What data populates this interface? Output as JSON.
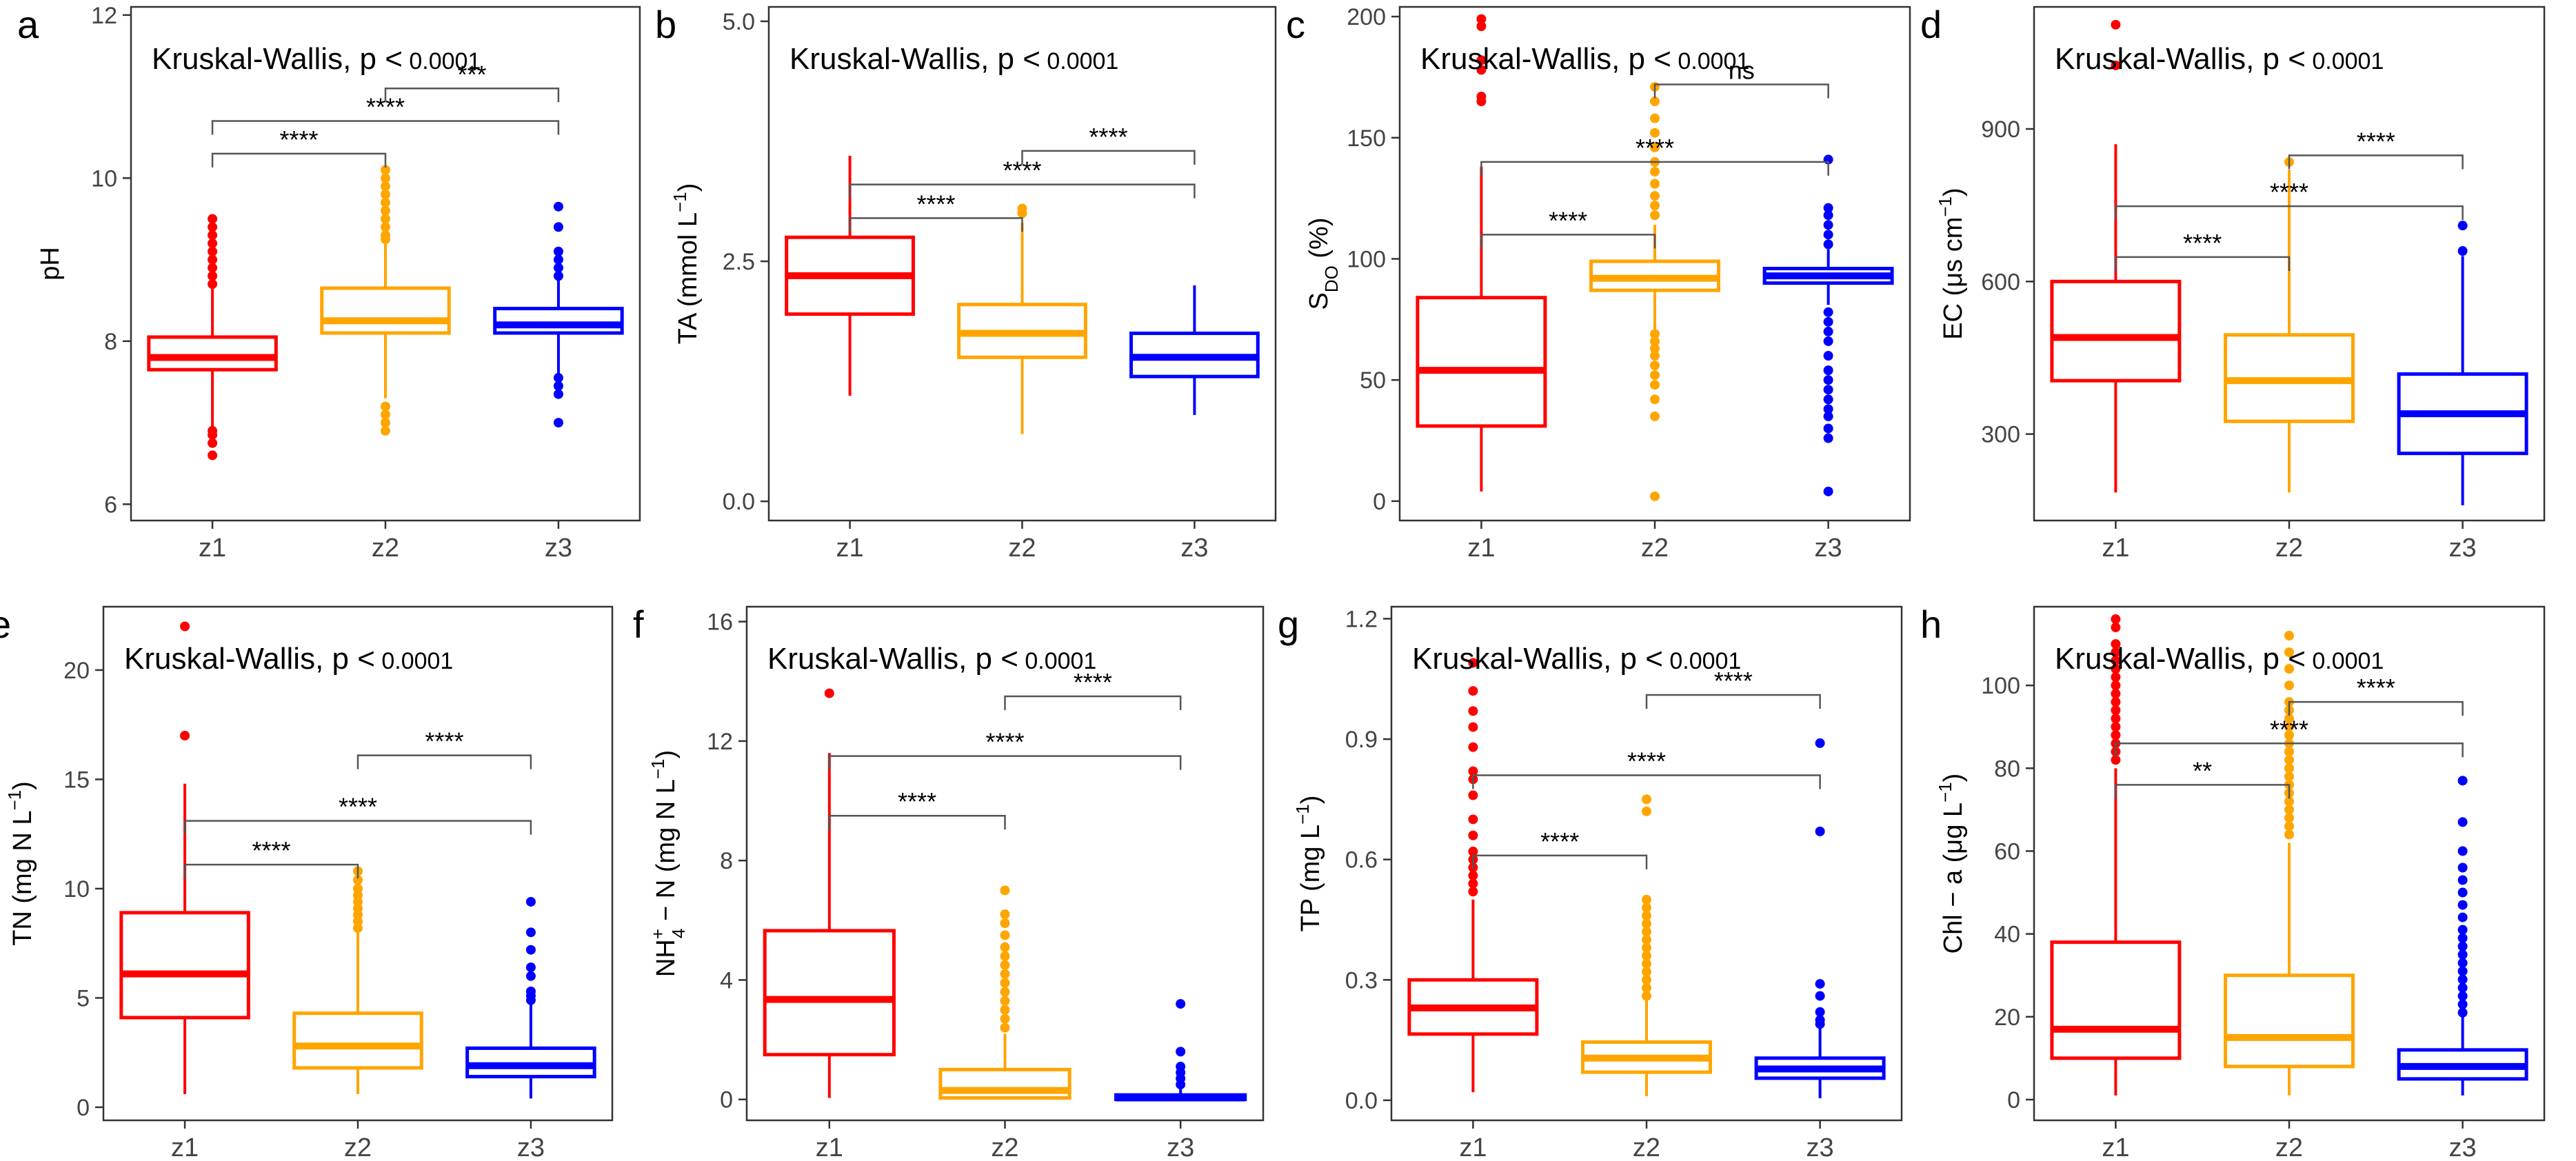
{
  "colors": {
    "z1": "#ff0000",
    "z2": "#ffa500",
    "z3": "#0000ff",
    "frame": "#333333",
    "bracket": "#555555"
  },
  "chart_data": [
    {
      "type": "box",
      "panel_label": "a",
      "title": "",
      "annotation": {
        "text": "Kruskal-Wallis, p <",
        "pvalue": "0.0001"
      },
      "xlabel": "",
      "ylabel": {
        "main": "pH"
      },
      "categories": [
        "z1",
        "z2",
        "z3"
      ],
      "ylim": [
        5.8,
        12.1
      ],
      "yticks": [
        {
          "v": 6,
          "label": "6"
        },
        {
          "v": 8,
          "label": "8"
        },
        {
          "v": 10,
          "label": "10"
        },
        {
          "v": 12,
          "label": "12"
        }
      ],
      "boxes": [
        {
          "group": "z1",
          "whislo": 6.95,
          "q1": 7.65,
          "med": 7.8,
          "q3": 8.05,
          "whishi": 8.65,
          "outliers": [
            6.6,
            6.75,
            6.85,
            6.9,
            8.7,
            8.8,
            8.9,
            9.0,
            9.1,
            9.2,
            9.3,
            9.4,
            9.5
          ]
        },
        {
          "group": "z2",
          "whislo": 7.3,
          "q1": 8.1,
          "med": 8.25,
          "q3": 8.65,
          "whishi": 9.2,
          "outliers": [
            6.9,
            7.0,
            7.1,
            7.2,
            9.25,
            9.3,
            9.4,
            9.5,
            9.6,
            9.7,
            9.8,
            9.9,
            10.0,
            10.1
          ]
        },
        {
          "group": "z3",
          "whislo": 7.6,
          "q1": 8.1,
          "med": 8.2,
          "q3": 8.4,
          "whishi": 8.75,
          "outliers": [
            7.0,
            7.35,
            7.45,
            7.55,
            8.8,
            8.9,
            9.0,
            9.1,
            9.4,
            9.65
          ]
        }
      ],
      "comparisons": [
        {
          "from": "z1",
          "to": "z2",
          "y": 10.3,
          "label": "****"
        },
        {
          "from": "z1",
          "to": "z3",
          "y": 10.7,
          "label": "****"
        },
        {
          "from": "z2",
          "to": "z3",
          "y": 11.1,
          "label": "***"
        }
      ]
    },
    {
      "type": "box",
      "panel_label": "b",
      "title": "",
      "annotation": {
        "text": "Kruskal-Wallis, p <",
        "pvalue": "0.0001"
      },
      "xlabel": "",
      "ylabel": {
        "main": "TA (mmol L",
        "sup": "−1",
        "end": ")"
      },
      "categories": [
        "z1",
        "z2",
        "z3"
      ],
      "ylim": [
        -0.2,
        5.15
      ],
      "yticks": [
        {
          "v": 0,
          "label": "0.0"
        },
        {
          "v": 2.5,
          "label": "2.5"
        },
        {
          "v": 5,
          "label": "5.0"
        }
      ],
      "boxes": [
        {
          "group": "z1",
          "whislo": 1.1,
          "q1": 1.95,
          "med": 2.35,
          "q3": 2.75,
          "whishi": 3.6,
          "outliers": []
        },
        {
          "group": "z2",
          "whislo": 0.7,
          "q1": 1.5,
          "med": 1.75,
          "q3": 2.05,
          "whishi": 2.9,
          "outliers": [
            3.0,
            3.05
          ]
        },
        {
          "group": "z3",
          "whislo": 0.9,
          "q1": 1.3,
          "med": 1.5,
          "q3": 1.75,
          "whishi": 2.25,
          "outliers": []
        }
      ],
      "comparisons": [
        {
          "from": "z1",
          "to": "z2",
          "y": 2.95,
          "label": "****"
        },
        {
          "from": "z1",
          "to": "z3",
          "y": 3.3,
          "label": "****"
        },
        {
          "from": "z2",
          "to": "z3",
          "y": 3.65,
          "label": "****"
        }
      ]
    },
    {
      "type": "box",
      "panel_label": "c",
      "title": "",
      "annotation": {
        "text": "Kruskal-Wallis, p <",
        "pvalue": "0.0001"
      },
      "xlabel": "",
      "ylabel": {
        "main": "S",
        "sub": "DO",
        "end": " (%)"
      },
      "categories": [
        "z1",
        "z2",
        "z3"
      ],
      "ylim": [
        -8,
        204
      ],
      "yticks": [
        {
          "v": 0,
          "label": "0"
        },
        {
          "v": 50,
          "label": "50"
        },
        {
          "v": 100,
          "label": "100"
        },
        {
          "v": 150,
          "label": "150"
        },
        {
          "v": 200,
          "label": "200"
        }
      ],
      "boxes": [
        {
          "group": "z1",
          "whislo": 4,
          "q1": 31,
          "med": 54,
          "q3": 84,
          "whishi": 138,
          "outliers": [
            165,
            167,
            178,
            182,
            196,
            199
          ]
        },
        {
          "group": "z2",
          "whislo": 71,
          "q1": 87,
          "med": 92,
          "q3": 99,
          "whishi": 114,
          "outliers": [
            2,
            35,
            42,
            48,
            52,
            56,
            60,
            63,
            66,
            69,
            118,
            122,
            126,
            131,
            136,
            140,
            146,
            152,
            158,
            165,
            171
          ]
        },
        {
          "group": "z3",
          "whislo": 81,
          "q1": 90,
          "med": 93,
          "q3": 96,
          "whishi": 104,
          "outliers": [
            4,
            26,
            30,
            35,
            38,
            42,
            46,
            50,
            54,
            60,
            66,
            70,
            74,
            78,
            106,
            110,
            114,
            118,
            121,
            141
          ]
        }
      ],
      "comparisons": [
        {
          "from": "z1",
          "to": "z2",
          "y": 110,
          "label": "****"
        },
        {
          "from": "z1",
          "to": "z3",
          "y": 140,
          "label": "****"
        },
        {
          "from": "z2",
          "to": "z3",
          "y": 172,
          "label": "ns"
        }
      ]
    },
    {
      "type": "box",
      "panel_label": "d",
      "title": "",
      "annotation": {
        "text": "Kruskal-Wallis, p <",
        "pvalue": "0.0001"
      },
      "xlabel": "",
      "ylabel": {
        "main": "EC (μs cm",
        "sup": "−1",
        "end": ")"
      },
      "categories": [
        "z1",
        "z2",
        "z3"
      ],
      "ylim": [
        130,
        1140
      ],
      "yticks": [
        {
          "v": 300,
          "label": "300"
        },
        {
          "v": 600,
          "label": "600"
        },
        {
          "v": 900,
          "label": "900"
        }
      ],
      "boxes": [
        {
          "group": "z1",
          "whislo": 185,
          "q1": 405,
          "med": 490,
          "q3": 600,
          "whishi": 870,
          "outliers": [
            1025,
            1105
          ]
        },
        {
          "group": "z2",
          "whislo": 185,
          "q1": 325,
          "med": 405,
          "q3": 495,
          "whishi": 820,
          "outliers": [
            835
          ]
        },
        {
          "group": "z3",
          "whislo": 160,
          "q1": 262,
          "med": 340,
          "q3": 418,
          "whishi": 650,
          "outliers": [
            660,
            710
          ]
        }
      ],
      "comparisons": [
        {
          "from": "z1",
          "to": "z2",
          "y": 648,
          "label": "****"
        },
        {
          "from": "z1",
          "to": "z3",
          "y": 748,
          "label": "****"
        },
        {
          "from": "z2",
          "to": "z3",
          "y": 848,
          "label": "****"
        }
      ]
    },
    {
      "type": "box",
      "panel_label": "e",
      "title": "",
      "annotation": {
        "text": "Kruskal-Wallis, p <",
        "pvalue": "0.0001"
      },
      "xlabel": "",
      "ylabel": {
        "main": "TN (mg N L",
        "sup": "−1",
        "end": ")"
      },
      "categories": [
        "z1",
        "z2",
        "z3"
      ],
      "ylim": [
        -0.6,
        22.9
      ],
      "yticks": [
        {
          "v": 0,
          "label": "0"
        },
        {
          "v": 5,
          "label": "5"
        },
        {
          "v": 10,
          "label": "10"
        },
        {
          "v": 15,
          "label": "15"
        },
        {
          "v": 20,
          "label": "20"
        }
      ],
      "boxes": [
        {
          "group": "z1",
          "whislo": 0.6,
          "q1": 4.1,
          "med": 6.1,
          "q3": 8.9,
          "whishi": 14.8,
          "outliers": [
            17.0,
            22.0
          ]
        },
        {
          "group": "z2",
          "whislo": 0.6,
          "q1": 1.8,
          "med": 2.8,
          "q3": 4.3,
          "whishi": 8.0,
          "outliers": [
            8.2,
            8.5,
            8.8,
            9.1,
            9.4,
            9.7,
            10.0,
            10.4,
            10.8
          ]
        },
        {
          "group": "z3",
          "whislo": 0.4,
          "q1": 1.4,
          "med": 1.9,
          "q3": 2.7,
          "whishi": 4.7,
          "outliers": [
            4.9,
            5.1,
            5.3,
            6.0,
            6.4,
            7.2,
            8.0,
            9.4
          ]
        }
      ],
      "comparisons": [
        {
          "from": "z1",
          "to": "z2",
          "y": 11.1,
          "label": "****"
        },
        {
          "from": "z1",
          "to": "z3",
          "y": 13.1,
          "label": "****"
        },
        {
          "from": "z2",
          "to": "z3",
          "y": 16.1,
          "label": "****"
        }
      ]
    },
    {
      "type": "box",
      "panel_label": "f",
      "title": "",
      "annotation": {
        "text": "Kruskal-Wallis, p <",
        "pvalue": "0.0001"
      },
      "xlabel": "",
      "ylabel": {
        "main": "NH",
        "sup": "+",
        "sub": "4",
        "end": " − N (mg N L",
        "sup2": "−1",
        "end2": ")"
      },
      "categories": [
        "z1",
        "z2",
        "z3"
      ],
      "ylim": [
        -0.7,
        16.5
      ],
      "yticks": [
        {
          "v": 0,
          "label": "0"
        },
        {
          "v": 4,
          "label": "4"
        },
        {
          "v": 8,
          "label": "8"
        },
        {
          "v": 12,
          "label": "12"
        },
        {
          "v": 16,
          "label": "16"
        }
      ],
      "boxes": [
        {
          "group": "z1",
          "whislo": 0.05,
          "q1": 1.5,
          "med": 3.35,
          "q3": 5.65,
          "whishi": 11.6,
          "outliers": [
            13.6
          ]
        },
        {
          "group": "z2",
          "whislo": 0.0,
          "q1": 0.05,
          "med": 0.3,
          "q3": 1.0,
          "whishi": 2.2,
          "outliers": [
            2.4,
            2.7,
            3.0,
            3.3,
            3.6,
            3.9,
            4.2,
            4.5,
            4.8,
            5.1,
            5.5,
            5.9,
            6.2,
            7.0
          ]
        },
        {
          "group": "z3",
          "whislo": 0.0,
          "q1": 0.0,
          "med": 0.05,
          "q3": 0.15,
          "whishi": 0.4,
          "outliers": [
            0.5,
            0.7,
            0.9,
            1.1,
            1.6,
            3.2
          ]
        }
      ],
      "comparisons": [
        {
          "from": "z1",
          "to": "z2",
          "y": 9.5,
          "label": "****"
        },
        {
          "from": "z1",
          "to": "z3",
          "y": 11.5,
          "label": "****"
        },
        {
          "from": "z2",
          "to": "z3",
          "y": 13.5,
          "label": "****"
        }
      ]
    },
    {
      "type": "box",
      "panel_label": "g",
      "title": "",
      "annotation": {
        "text": "Kruskal-Wallis, p <",
        "pvalue": "0.0001"
      },
      "xlabel": "",
      "ylabel": {
        "main": "TP (mg L",
        "sup": "−1",
        "end": ")"
      },
      "categories": [
        "z1",
        "z2",
        "z3"
      ],
      "ylim": [
        -0.05,
        1.23
      ],
      "yticks": [
        {
          "v": 0,
          "label": "0.0"
        },
        {
          "v": 0.3,
          "label": "0.3"
        },
        {
          "v": 0.6,
          "label": "0.6"
        },
        {
          "v": 0.9,
          "label": "0.9"
        },
        {
          "v": 1.2,
          "label": "1.2"
        }
      ],
      "boxes": [
        {
          "group": "z1",
          "whislo": 0.02,
          "q1": 0.165,
          "med": 0.23,
          "q3": 0.3,
          "whishi": 0.5,
          "outliers": [
            0.52,
            0.54,
            0.56,
            0.58,
            0.6,
            0.62,
            0.66,
            0.7,
            0.76,
            0.8,
            0.82,
            0.88,
            0.93,
            0.97,
            1.02,
            1.09
          ]
        },
        {
          "group": "z2",
          "whislo": 0.01,
          "q1": 0.07,
          "med": 0.105,
          "q3": 0.145,
          "whishi": 0.25,
          "outliers": [
            0.26,
            0.28,
            0.3,
            0.32,
            0.34,
            0.36,
            0.38,
            0.4,
            0.42,
            0.44,
            0.46,
            0.48,
            0.5,
            0.72,
            0.75
          ]
        },
        {
          "group": "z3",
          "whislo": 0.005,
          "q1": 0.055,
          "med": 0.078,
          "q3": 0.105,
          "whishi": 0.18,
          "outliers": [
            0.19,
            0.2,
            0.22,
            0.26,
            0.29,
            0.67,
            0.89
          ]
        }
      ],
      "comparisons": [
        {
          "from": "z1",
          "to": "z2",
          "y": 0.61,
          "label": "****"
        },
        {
          "from": "z1",
          "to": "z3",
          "y": 0.81,
          "label": "****"
        },
        {
          "from": "z2",
          "to": "z3",
          "y": 1.01,
          "label": "****"
        }
      ]
    },
    {
      "type": "box",
      "panel_label": "h",
      "title": "",
      "annotation": {
        "text": "Kruskal-Wallis, p <",
        "pvalue": "0.0001"
      },
      "xlabel": "",
      "ylabel": {
        "main": "Chl − a (μg L",
        "sup": "−1",
        "end": ")"
      },
      "categories": [
        "z1",
        "z2",
        "z3"
      ],
      "ylim": [
        -5,
        119
      ],
      "yticks": [
        {
          "v": 0,
          "label": "0"
        },
        {
          "v": 20,
          "label": "20"
        },
        {
          "v": 40,
          "label": "40"
        },
        {
          "v": 60,
          "label": "60"
        },
        {
          "v": 80,
          "label": "80"
        },
        {
          "v": 100,
          "label": "100"
        }
      ],
      "boxes": [
        {
          "group": "z1",
          "whislo": 1,
          "q1": 10,
          "med": 17,
          "q3": 38,
          "whishi": 80,
          "outliers": [
            82,
            84,
            86,
            88,
            90,
            92,
            94,
            96,
            98,
            100,
            102,
            104,
            106,
            108,
            110,
            114,
            116
          ]
        },
        {
          "group": "z2",
          "whislo": 1,
          "q1": 8,
          "med": 15,
          "q3": 30,
          "whishi": 62,
          "outliers": [
            64,
            66,
            68,
            70,
            72,
            74,
            76,
            78,
            80,
            82,
            84,
            86,
            88,
            90,
            92,
            94,
            96,
            100,
            104,
            108,
            112
          ]
        },
        {
          "group": "z3",
          "whislo": 1,
          "q1": 5,
          "med": 8,
          "q3": 12,
          "whishi": 20,
          "outliers": [
            21,
            23,
            25,
            27,
            29,
            31,
            33,
            35,
            37,
            39,
            41,
            44,
            47,
            50,
            53,
            56,
            60,
            67,
            77
          ]
        }
      ],
      "comparisons": [
        {
          "from": "z1",
          "to": "z2",
          "y": 76,
          "label": "**"
        },
        {
          "from": "z1",
          "to": "z3",
          "y": 86,
          "label": "****"
        },
        {
          "from": "z2",
          "to": "z3",
          "y": 96,
          "label": "****"
        }
      ]
    }
  ]
}
